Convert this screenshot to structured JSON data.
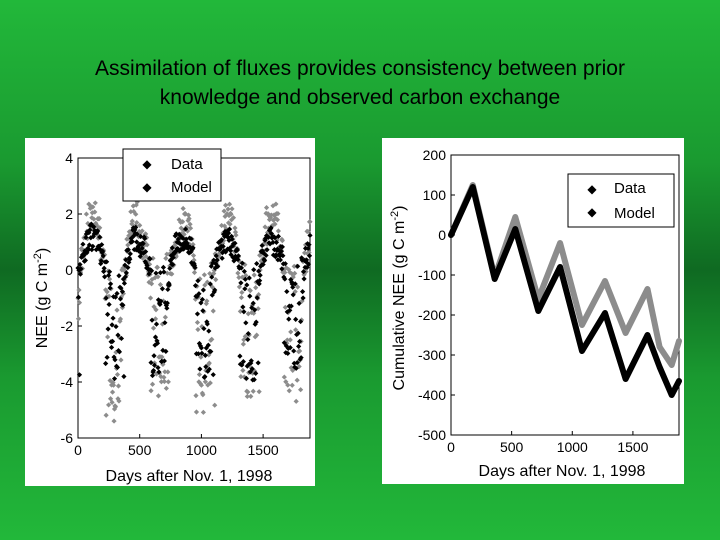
{
  "slide": {
    "title_line1": "Assimilation of fluxes provides consistency between prior",
    "title_line2": "knowledge and observed carbon exchange"
  },
  "chart_data": [
    {
      "type": "scatter",
      "title": "",
      "xlabel": "Days after Nov. 1, 1998",
      "ylabel": "NEE (g C m-2)",
      "ylabel_main": "NEE (g C m",
      "ylabel_sup": "-2",
      "ylabel_close": ")",
      "xlim": [
        0,
        1880
      ],
      "ylim": [
        -6,
        4
      ],
      "xticks": [
        0,
        500,
        1000,
        1500
      ],
      "yticks": [
        -6,
        -4,
        -2,
        0,
        2,
        4
      ],
      "legend": {
        "position": "top-center",
        "entries": [
          "Data",
          "Model"
        ]
      },
      "series": [
        {
          "name": "Data",
          "color": "#8c8c8c",
          "description": "daily observed NEE, seasonal cycle with summer uptake troughs near -4 to -5 and winter release peaks near +2",
          "seasons": [
            {
              "center_day": 300,
              "summer_min": -5.2,
              "winter_max": 2.3
            },
            {
              "center_day": 660,
              "summer_min": -4.4,
              "winter_max": 1.6
            },
            {
              "center_day": 1030,
              "summer_min": -5.1,
              "winter_max": 2.2
            },
            {
              "center_day": 1390,
              "summer_min": -4.6,
              "winter_max": 2.3
            },
            {
              "center_day": 1750,
              "summer_min": -4.4,
              "winter_max": 2.6
            }
          ]
        },
        {
          "name": "Model",
          "color": "#000000",
          "description": "modeled daily NEE, same seasonal cycle with slightly smaller amplitude",
          "seasons": [
            {
              "center_day": 300,
              "summer_min": -4.0,
              "winter_max": 1.4
            },
            {
              "center_day": 660,
              "summer_min": -3.8,
              "winter_max": 1.2
            },
            {
              "center_day": 1030,
              "summer_min": -3.8,
              "winter_max": 1.3
            },
            {
              "center_day": 1390,
              "summer_min": -4.0,
              "winter_max": 1.3
            },
            {
              "center_day": 1750,
              "summer_min": -3.4,
              "winter_max": 1.2
            }
          ]
        }
      ]
    },
    {
      "type": "line",
      "title": "",
      "xlabel": "Days after Nov. 1, 1998",
      "ylabel": "Cumulative NEE (g C m-2)",
      "ylabel_main": "Cumulative NEE (g C m",
      "ylabel_sup": "-2",
      "ylabel_close": ")",
      "xlim": [
        0,
        1880
      ],
      "ylim": [
        -500,
        200
      ],
      "xticks": [
        0,
        500,
        1000,
        1500
      ],
      "yticks": [
        -500,
        -400,
        -300,
        -200,
        -100,
        0,
        100,
        200
      ],
      "legend": {
        "position": "top-right",
        "entries": [
          "Data",
          "Model"
        ]
      },
      "series": [
        {
          "name": "Data",
          "color": "#8c8c8c",
          "x": [
            0,
            180,
            360,
            530,
            720,
            900,
            1080,
            1270,
            1440,
            1620,
            1720,
            1820,
            1880
          ],
          "y": [
            0,
            125,
            -105,
            45,
            -160,
            -20,
            -225,
            -115,
            -245,
            -135,
            -280,
            -325,
            -265
          ]
        },
        {
          "name": "Model",
          "color": "#000000",
          "x": [
            0,
            180,
            360,
            530,
            720,
            900,
            1080,
            1270,
            1440,
            1620,
            1720,
            1820,
            1880
          ],
          "y": [
            0,
            120,
            -110,
            15,
            -190,
            -80,
            -290,
            -195,
            -360,
            -250,
            -330,
            -400,
            -365
          ]
        }
      ]
    }
  ]
}
